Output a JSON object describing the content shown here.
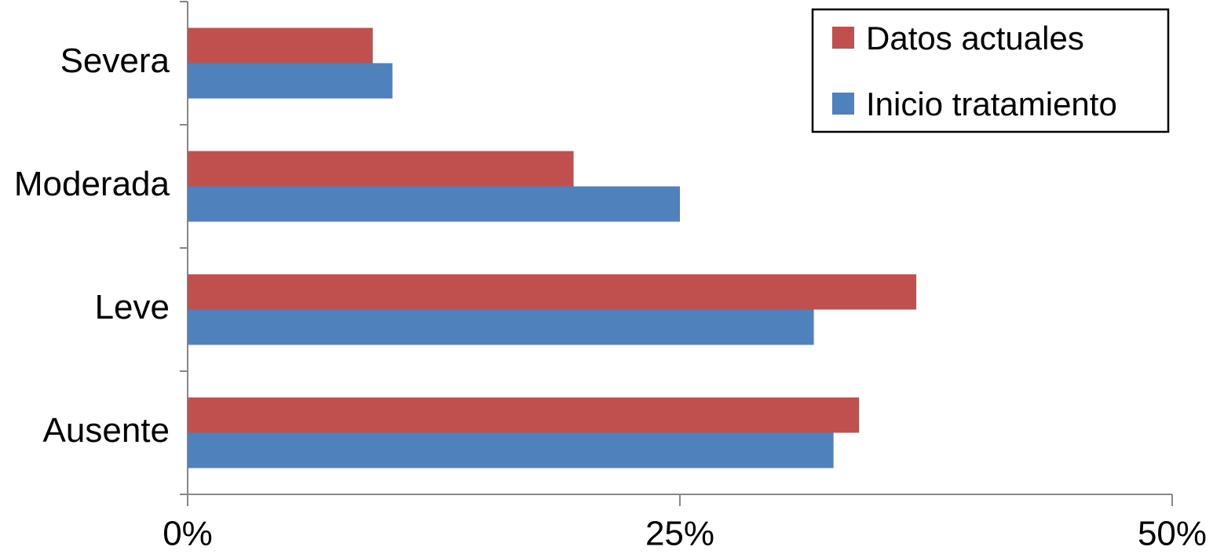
{
  "chart_data": {
    "type": "hbar",
    "categories": [
      "Ausente",
      "Leve",
      "Moderada",
      "Severa"
    ],
    "series": [
      {
        "name": "Datos actuales",
        "color": "#c0504d",
        "values": [
          34.1,
          37.0,
          19.6,
          9.4
        ]
      },
      {
        "name": "Inicio tratamiento",
        "color": "#4f81bd",
        "values": [
          32.8,
          31.8,
          25.0,
          10.4
        ]
      }
    ],
    "xlim": [
      0,
      50
    ],
    "xticks": [
      {
        "value": 0,
        "label": "0%"
      },
      {
        "value": 25,
        "label": "25%"
      },
      {
        "value": 50,
        "label": "50%"
      }
    ],
    "legend": "top-right"
  }
}
